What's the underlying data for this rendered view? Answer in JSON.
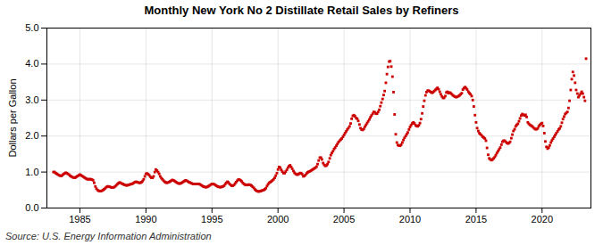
{
  "chart_data": {
    "type": "scatter",
    "title": "Monthly New York No 2 Distillate Retail Sales by Refiners",
    "ylabel": "Dollars per Gallon",
    "annotations": [
      "Source: U.S. Energy Information Administration"
    ],
    "color": "#cc0000",
    "marker": "square",
    "grid": true,
    "xlim": [
      1982.5,
      2023.7
    ],
    "ylim": [
      0.0,
      5.0
    ],
    "xticks": [
      1985,
      1990,
      1995,
      2000,
      2005,
      2010,
      2015,
      2020
    ],
    "yticks": [
      {
        "value": 0.0,
        "label": "0.0"
      },
      {
        "value": 1.0,
        "label": "1.0"
      },
      {
        "value": 2.0,
        "label": "2.0"
      },
      {
        "value": 3.0,
        "label": "3.0"
      },
      {
        "value": 4.0,
        "label": "4.0"
      },
      {
        "value": 5.0,
        "label": "5.0"
      }
    ],
    "x": [
      1983.0,
      1983.08,
      1983.17,
      1983.25,
      1983.33,
      1983.42,
      1983.5,
      1983.58,
      1983.67,
      1983.75,
      1983.83,
      1983.92,
      1984.0,
      1984.08,
      1984.17,
      1984.25,
      1984.33,
      1984.42,
      1984.5,
      1984.58,
      1984.67,
      1984.75,
      1984.83,
      1984.92,
      1985.0,
      1985.08,
      1985.17,
      1985.25,
      1985.33,
      1985.42,
      1985.5,
      1985.58,
      1985.67,
      1985.75,
      1985.83,
      1985.92,
      1986.0,
      1986.08,
      1986.17,
      1986.25,
      1986.33,
      1986.42,
      1986.5,
      1986.58,
      1986.67,
      1986.75,
      1986.83,
      1986.92,
      1987.0,
      1987.08,
      1987.17,
      1987.25,
      1987.33,
      1987.42,
      1987.5,
      1987.58,
      1987.67,
      1987.75,
      1987.83,
      1987.92,
      1988.0,
      1988.08,
      1988.17,
      1988.25,
      1988.33,
      1988.42,
      1988.5,
      1988.58,
      1988.67,
      1988.75,
      1988.83,
      1988.92,
      1989.0,
      1989.08,
      1989.17,
      1989.25,
      1989.33,
      1989.42,
      1989.5,
      1989.58,
      1989.67,
      1989.75,
      1989.83,
      1989.92,
      1990.0,
      1990.08,
      1990.17,
      1990.25,
      1990.33,
      1990.42,
      1990.5,
      1990.58,
      1990.67,
      1990.75,
      1990.83,
      1990.92,
      1991.0,
      1991.08,
      1991.17,
      1991.25,
      1991.33,
      1991.42,
      1991.5,
      1991.58,
      1991.67,
      1991.75,
      1991.83,
      1991.92,
      1992.0,
      1992.08,
      1992.17,
      1992.25,
      1992.33,
      1992.42,
      1992.5,
      1992.58,
      1992.67,
      1992.75,
      1992.83,
      1992.92,
      1993.0,
      1993.08,
      1993.17,
      1993.25,
      1993.33,
      1993.42,
      1993.5,
      1993.58,
      1993.67,
      1993.75,
      1993.83,
      1993.92,
      1994.0,
      1994.08,
      1994.17,
      1994.25,
      1994.33,
      1994.42,
      1994.5,
      1994.58,
      1994.67,
      1994.75,
      1994.83,
      1994.92,
      1995.0,
      1995.08,
      1995.17,
      1995.25,
      1995.33,
      1995.42,
      1995.5,
      1995.58,
      1995.67,
      1995.75,
      1995.83,
      1995.92,
      1996.0,
      1996.08,
      1996.17,
      1996.25,
      1996.33,
      1996.42,
      1996.5,
      1996.58,
      1996.67,
      1996.75,
      1996.83,
      1996.92,
      1997.0,
      1997.08,
      1997.17,
      1997.25,
      1997.33,
      1997.42,
      1997.5,
      1997.58,
      1997.67,
      1997.75,
      1997.83,
      1997.92,
      1998.0,
      1998.08,
      1998.17,
      1998.25,
      1998.33,
      1998.42,
      1998.5,
      1998.58,
      1998.67,
      1998.75,
      1998.83,
      1998.92,
      1999.0,
      1999.08,
      1999.17,
      1999.25,
      1999.33,
      1999.42,
      1999.5,
      1999.58,
      1999.67,
      1999.75,
      1999.83,
      1999.92,
      2000.0,
      2000.08,
      2000.17,
      2000.25,
      2000.33,
      2000.42,
      2000.5,
      2000.58,
      2000.67,
      2000.75,
      2000.83,
      2000.92,
      2001.0,
      2001.08,
      2001.17,
      2001.25,
      2001.33,
      2001.42,
      2001.5,
      2001.58,
      2001.67,
      2001.75,
      2001.83,
      2001.92,
      2002.0,
      2002.08,
      2002.17,
      2002.25,
      2002.33,
      2002.42,
      2002.5,
      2002.58,
      2002.67,
      2002.75,
      2002.83,
      2002.92,
      2003.0,
      2003.08,
      2003.17,
      2003.25,
      2003.33,
      2003.42,
      2003.5,
      2003.58,
      2003.67,
      2003.75,
      2003.83,
      2003.92,
      2004.0,
      2004.08,
      2004.17,
      2004.25,
      2004.33,
      2004.42,
      2004.5,
      2004.58,
      2004.67,
      2004.75,
      2004.83,
      2004.92,
      2005.0,
      2005.08,
      2005.17,
      2005.25,
      2005.33,
      2005.42,
      2005.5,
      2005.58,
      2005.67,
      2005.75,
      2005.83,
      2005.92,
      2006.0,
      2006.08,
      2006.17,
      2006.25,
      2006.33,
      2006.42,
      2006.5,
      2006.58,
      2006.67,
      2006.75,
      2006.83,
      2006.92,
      2007.0,
      2007.08,
      2007.17,
      2007.25,
      2007.33,
      2007.42,
      2007.5,
      2007.58,
      2007.67,
      2007.75,
      2007.83,
      2007.92,
      2008.0,
      2008.08,
      2008.17,
      2008.25,
      2008.33,
      2008.42,
      2008.5,
      2008.58,
      2008.67,
      2008.75,
      2008.83,
      2008.92,
      2009.0,
      2009.08,
      2009.17,
      2009.25,
      2009.33,
      2009.42,
      2009.5,
      2009.58,
      2009.67,
      2009.75,
      2009.83,
      2009.92,
      2010.0,
      2010.08,
      2010.17,
      2010.25,
      2010.33,
      2010.42,
      2010.5,
      2010.58,
      2010.67,
      2010.75,
      2010.83,
      2010.92,
      2011.0,
      2011.08,
      2011.17,
      2011.25,
      2011.33,
      2011.42,
      2011.5,
      2011.58,
      2011.67,
      2011.75,
      2011.83,
      2011.92,
      2012.0,
      2012.08,
      2012.17,
      2012.25,
      2012.33,
      2012.42,
      2012.5,
      2012.58,
      2012.67,
      2012.75,
      2012.83,
      2012.92,
      2013.0,
      2013.08,
      2013.17,
      2013.25,
      2013.33,
      2013.42,
      2013.5,
      2013.58,
      2013.67,
      2013.75,
      2013.83,
      2013.92,
      2014.0,
      2014.08,
      2014.17,
      2014.25,
      2014.33,
      2014.42,
      2014.5,
      2014.58,
      2014.67,
      2014.75,
      2014.83,
      2014.92,
      2015.0,
      2015.08,
      2015.17,
      2015.25,
      2015.33,
      2015.42,
      2015.5,
      2015.58,
      2015.67,
      2015.75,
      2015.83,
      2015.92,
      2016.0,
      2016.08,
      2016.17,
      2016.25,
      2016.33,
      2016.42,
      2016.5,
      2016.58,
      2016.67,
      2016.75,
      2016.83,
      2016.92,
      2017.0,
      2017.08,
      2017.17,
      2017.25,
      2017.33,
      2017.42,
      2017.5,
      2017.58,
      2017.67,
      2017.75,
      2017.83,
      2017.92,
      2018.0,
      2018.08,
      2018.17,
      2018.25,
      2018.33,
      2018.42,
      2018.5,
      2018.58,
      2018.67,
      2018.75,
      2018.83,
      2018.92,
      2019.0,
      2019.08,
      2019.17,
      2019.25,
      2019.33,
      2019.42,
      2019.5,
      2019.58,
      2019.67,
      2019.75,
      2019.83,
      2019.92,
      2020.0,
      2020.08,
      2020.17,
      2020.25,
      2020.33,
      2020.42,
      2020.5,
      2020.58,
      2020.67,
      2020.75,
      2020.83,
      2020.92,
      2021.0,
      2021.08,
      2021.17,
      2021.25,
      2021.33,
      2021.42,
      2021.5,
      2021.58,
      2021.67,
      2021.75,
      2021.83,
      2021.92,
      2022.0,
      2022.08,
      2022.17,
      2022.25,
      2022.33,
      2022.42,
      2022.5,
      2022.58,
      2022.67,
      2022.75,
      2022.83,
      2022.92,
      2023.0,
      2023.08,
      2023.17,
      2023.25,
      2023.33
    ],
    "values": [
      1.0,
      1.0,
      0.97,
      0.95,
      0.93,
      0.91,
      0.9,
      0.89,
      0.91,
      0.94,
      0.96,
      0.98,
      0.97,
      0.95,
      0.93,
      0.9,
      0.88,
      0.86,
      0.85,
      0.84,
      0.85,
      0.87,
      0.89,
      0.91,
      0.93,
      0.91,
      0.89,
      0.87,
      0.85,
      0.83,
      0.81,
      0.8,
      0.8,
      0.8,
      0.8,
      0.79,
      0.77,
      0.7,
      0.6,
      0.54,
      0.5,
      0.48,
      0.47,
      0.47,
      0.48,
      0.5,
      0.52,
      0.55,
      0.58,
      0.6,
      0.6,
      0.59,
      0.58,
      0.57,
      0.57,
      0.58,
      0.6,
      0.63,
      0.66,
      0.69,
      0.71,
      0.7,
      0.68,
      0.67,
      0.65,
      0.64,
      0.63,
      0.63,
      0.64,
      0.65,
      0.66,
      0.67,
      0.68,
      0.7,
      0.72,
      0.73,
      0.72,
      0.71,
      0.7,
      0.7,
      0.72,
      0.75,
      0.8,
      0.88,
      0.95,
      0.96,
      0.94,
      0.91,
      0.87,
      0.84,
      0.84,
      0.88,
      1.0,
      1.07,
      1.04,
      1.0,
      0.95,
      0.88,
      0.83,
      0.8,
      0.76,
      0.73,
      0.71,
      0.7,
      0.71,
      0.72,
      0.74,
      0.76,
      0.78,
      0.77,
      0.75,
      0.73,
      0.71,
      0.69,
      0.68,
      0.68,
      0.69,
      0.71,
      0.73,
      0.75,
      0.77,
      0.76,
      0.74,
      0.72,
      0.71,
      0.69,
      0.68,
      0.67,
      0.67,
      0.67,
      0.67,
      0.67,
      0.67,
      0.66,
      0.64,
      0.62,
      0.6,
      0.59,
      0.58,
      0.58,
      0.59,
      0.61,
      0.63,
      0.65,
      0.67,
      0.67,
      0.66,
      0.64,
      0.62,
      0.6,
      0.59,
      0.58,
      0.58,
      0.59,
      0.6,
      0.62,
      0.66,
      0.7,
      0.73,
      0.71,
      0.67,
      0.64,
      0.62,
      0.62,
      0.64,
      0.68,
      0.72,
      0.76,
      0.79,
      0.79,
      0.77,
      0.74,
      0.7,
      0.67,
      0.65,
      0.64,
      0.64,
      0.65,
      0.65,
      0.64,
      0.62,
      0.59,
      0.56,
      0.52,
      0.49,
      0.47,
      0.46,
      0.46,
      0.47,
      0.48,
      0.49,
      0.5,
      0.52,
      0.55,
      0.61,
      0.66,
      0.7,
      0.72,
      0.74,
      0.77,
      0.8,
      0.84,
      0.9,
      0.97,
      1.07,
      1.14,
      1.12,
      1.06,
      1.01,
      0.97,
      0.97,
      1.01,
      1.06,
      1.12,
      1.16,
      1.19,
      1.14,
      1.09,
      1.03,
      0.98,
      0.95,
      0.93,
      0.93,
      0.95,
      0.97,
      0.97,
      0.94,
      0.88,
      0.89,
      0.92,
      0.96,
      0.99,
      1.01,
      1.02,
      1.04,
      1.06,
      1.08,
      1.1,
      1.12,
      1.15,
      1.22,
      1.32,
      1.4,
      1.4,
      1.35,
      1.25,
      1.2,
      1.17,
      1.18,
      1.22,
      1.28,
      1.38,
      1.47,
      1.53,
      1.58,
      1.64,
      1.68,
      1.73,
      1.78,
      1.83,
      1.87,
      1.9,
      1.93,
      1.98,
      2.03,
      2.08,
      2.13,
      2.18,
      2.22,
      2.27,
      2.35,
      2.48,
      2.56,
      2.58,
      2.55,
      2.5,
      2.48,
      2.42,
      2.32,
      2.22,
      2.18,
      2.17,
      2.2,
      2.26,
      2.31,
      2.36,
      2.41,
      2.46,
      2.52,
      2.57,
      2.62,
      2.67,
      2.66,
      2.62,
      2.62,
      2.67,
      2.73,
      2.83,
      2.93,
      3.03,
      3.14,
      3.25,
      3.48,
      3.72,
      3.92,
      4.07,
      4.08,
      3.93,
      3.65,
      3.22,
      2.6,
      2.05,
      1.82,
      1.75,
      1.73,
      1.73,
      1.76,
      1.82,
      1.89,
      1.95,
      2.0,
      2.05,
      2.1,
      2.18,
      2.25,
      2.3,
      2.35,
      2.38,
      2.35,
      2.3,
      2.28,
      2.27,
      2.3,
      2.36,
      2.47,
      2.63,
      2.82,
      2.98,
      3.13,
      3.22,
      3.26,
      3.26,
      3.24,
      3.22,
      3.2,
      3.22,
      3.25,
      3.28,
      3.31,
      3.34,
      3.3,
      3.23,
      3.16,
      3.1,
      3.06,
      3.06,
      3.11,
      3.21,
      3.23,
      3.19,
      3.21,
      3.19,
      3.16,
      3.13,
      3.11,
      3.09,
      3.08,
      3.09,
      3.11,
      3.13,
      3.16,
      3.19,
      3.29,
      3.33,
      3.36,
      3.33,
      3.29,
      3.23,
      3.19,
      3.16,
      3.11,
      3.0,
      2.82,
      2.58,
      2.38,
      2.22,
      2.14,
      2.08,
      2.05,
      2.02,
      1.98,
      1.96,
      1.93,
      1.87,
      1.67,
      1.48,
      1.38,
      1.35,
      1.33,
      1.35,
      1.38,
      1.42,
      1.47,
      1.53,
      1.58,
      1.63,
      1.68,
      1.76,
      1.84,
      1.87,
      1.87,
      1.84,
      1.81,
      1.79,
      1.81,
      1.84,
      1.94,
      2.04,
      2.14,
      2.19,
      2.27,
      2.31,
      2.34,
      2.41,
      2.49,
      2.57,
      2.61,
      2.59,
      2.57,
      2.59,
      2.53,
      2.38,
      2.34,
      2.31,
      2.29,
      2.27,
      2.24,
      2.21,
      2.19,
      2.19,
      2.21,
      2.27,
      2.31,
      2.34,
      2.36,
      2.28,
      2.08,
      1.85,
      1.7,
      1.65,
      1.68,
      1.74,
      1.82,
      1.88,
      1.93,
      1.98,
      2.03,
      2.08,
      2.13,
      2.18,
      2.21,
      2.27,
      2.37,
      2.47,
      2.54,
      2.61,
      2.64,
      2.67,
      2.78,
      2.98,
      3.28,
      3.58,
      3.78,
      3.68,
      3.48,
      3.28,
      3.18,
      3.08,
      3.13,
      3.18,
      3.23,
      3.18,
      3.08,
      2.98,
      4.15
    ]
  }
}
